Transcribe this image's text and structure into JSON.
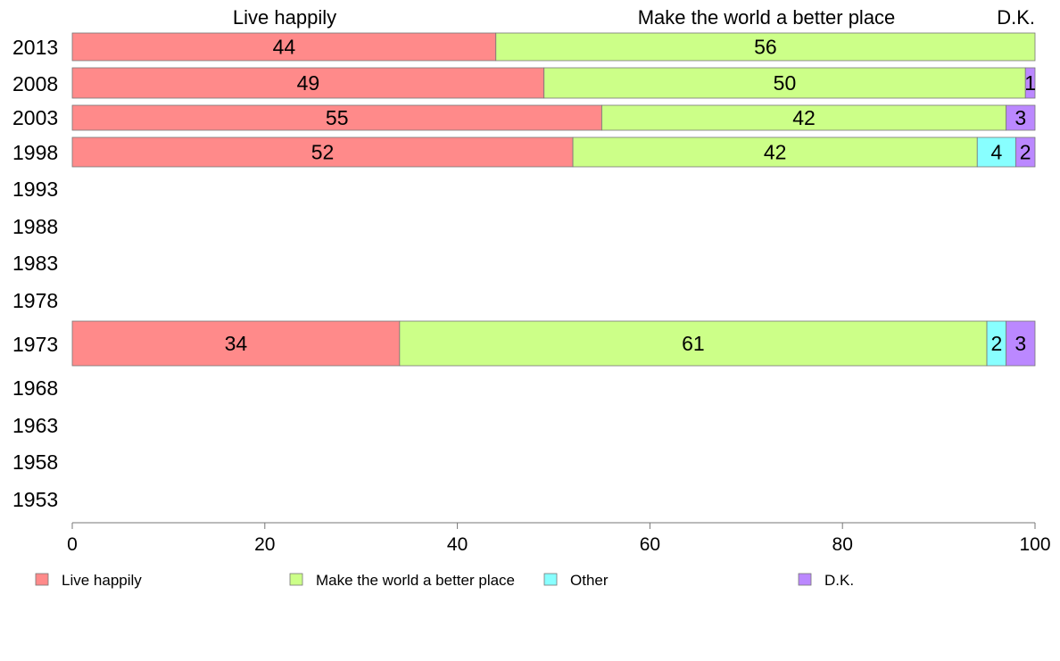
{
  "chart_data": {
    "type": "bar",
    "orientation": "horizontal",
    "stacked": true,
    "categories": [
      "2013",
      "2008",
      "2003",
      "1998",
      "1993",
      "1988",
      "1983",
      "1978",
      "1973",
      "1968",
      "1963",
      "1958",
      "1953"
    ],
    "series": [
      {
        "name": "Live happily",
        "color": "#FF8A8A",
        "values": [
          44,
          49,
          55,
          52,
          null,
          null,
          null,
          null,
          34,
          null,
          null,
          null,
          null
        ]
      },
      {
        "name": "Make the world a better place",
        "color": "#CCFF88",
        "values": [
          56,
          50,
          42,
          42,
          null,
          null,
          null,
          null,
          61,
          null,
          null,
          null,
          null
        ]
      },
      {
        "name": "Other",
        "color": "#88FFFF",
        "values": [
          0,
          0,
          0,
          4,
          null,
          null,
          null,
          null,
          2,
          null,
          null,
          null,
          null
        ]
      },
      {
        "name": "D.K.",
        "color": "#BB88FF",
        "values": [
          0,
          1,
          3,
          2,
          null,
          null,
          null,
          null,
          3,
          null,
          null,
          null,
          null
        ]
      }
    ],
    "bar_labels": [
      [
        "44",
        "56",
        "",
        ""
      ],
      [
        "49",
        "50",
        "",
        "1"
      ],
      [
        "55",
        "42",
        "",
        "3"
      ],
      [
        "52",
        "42",
        "4",
        "2"
      ],
      [],
      [],
      [],
      [],
      [
        "34",
        "61",
        "2",
        "3"
      ],
      [],
      [],
      [],
      []
    ],
    "top_labels": [
      "Live happily",
      "Make the world a better place",
      "D.K."
    ],
    "xlim": [
      0,
      100
    ],
    "xticks": [
      "0",
      "20",
      "40",
      "60",
      "80",
      "100"
    ],
    "legend": {
      "placement": "bottom",
      "entries": [
        "Live happily",
        "Make the world a better place",
        "Other",
        "D.K."
      ]
    },
    "grid": false,
    "title": "",
    "xlabel": "",
    "ylabel": ""
  }
}
